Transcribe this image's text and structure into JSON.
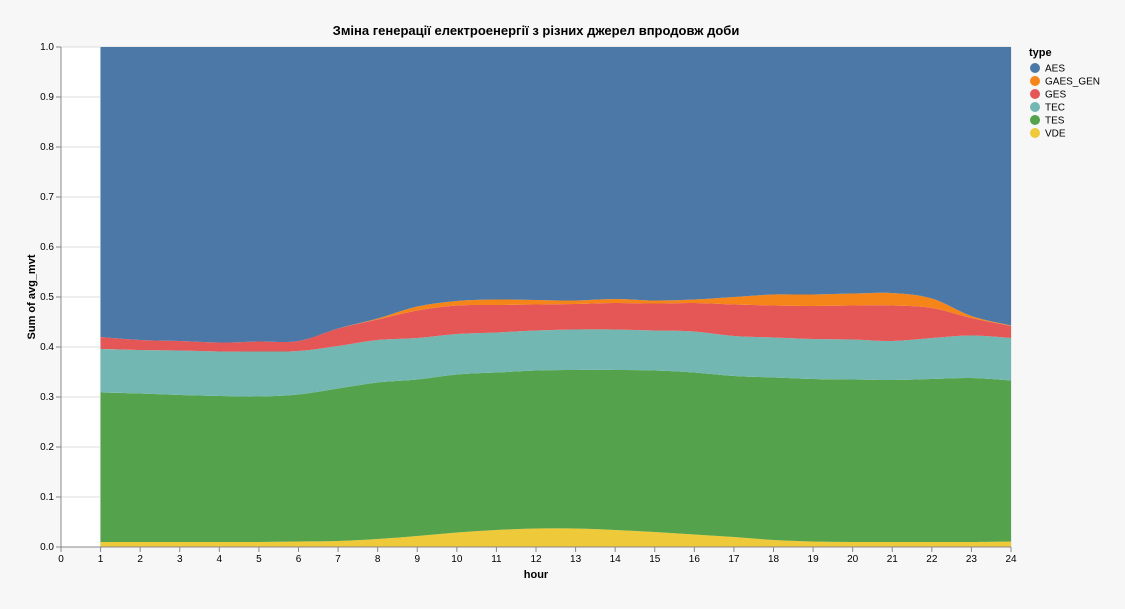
{
  "chart_data": {
    "type": "area",
    "stacked": "normalize",
    "title": "Зміна генерації електроенергії з різних джерел впродовж доби",
    "xlabel": "hour",
    "ylabel": "Sum of avg_mvt",
    "xlim": [
      0,
      24
    ],
    "ylim": [
      0,
      1
    ],
    "x_ticks": [
      "0",
      "1",
      "2",
      "3",
      "4",
      "5",
      "6",
      "7",
      "8",
      "9",
      "10",
      "11",
      "12",
      "13",
      "14",
      "15",
      "16",
      "17",
      "18",
      "19",
      "20",
      "21",
      "22",
      "23",
      "24"
    ],
    "y_ticks": [
      "0.0",
      "0.1",
      "0.2",
      "0.3",
      "0.4",
      "0.5",
      "0.6",
      "0.7",
      "0.8",
      "0.9",
      "1.0"
    ],
    "grid": true,
    "legend": {
      "title": "type",
      "placement": "right"
    },
    "x": [
      1,
      2,
      3,
      4,
      5,
      6,
      7,
      8,
      9,
      10,
      11,
      12,
      13,
      14,
      15,
      16,
      17,
      18,
      19,
      20,
      21,
      22,
      23,
      24
    ],
    "series": [
      {
        "name": "VDE",
        "color": "#eeca3b",
        "values": [
          0.01,
          0.01,
          0.01,
          0.01,
          0.01,
          0.011,
          0.012,
          0.016,
          0.022,
          0.029,
          0.034,
          0.037,
          0.037,
          0.034,
          0.03,
          0.025,
          0.02,
          0.014,
          0.011,
          0.01,
          0.01,
          0.01,
          0.01,
          0.011
        ]
      },
      {
        "name": "TES",
        "color": "#54a24b",
        "values": [
          0.299,
          0.297,
          0.294,
          0.292,
          0.291,
          0.294,
          0.305,
          0.313,
          0.313,
          0.316,
          0.315,
          0.316,
          0.317,
          0.32,
          0.323,
          0.324,
          0.322,
          0.325,
          0.325,
          0.325,
          0.324,
          0.326,
          0.328,
          0.322
        ]
      },
      {
        "name": "TEC",
        "color": "#72b7b2",
        "values": [
          0.087,
          0.087,
          0.089,
          0.089,
          0.09,
          0.087,
          0.085,
          0.085,
          0.083,
          0.081,
          0.08,
          0.08,
          0.081,
          0.081,
          0.08,
          0.082,
          0.08,
          0.08,
          0.08,
          0.08,
          0.078,
          0.082,
          0.085,
          0.085
        ]
      },
      {
        "name": "GES",
        "color": "#e45756",
        "values": [
          0.024,
          0.02,
          0.019,
          0.018,
          0.02,
          0.02,
          0.035,
          0.041,
          0.055,
          0.057,
          0.055,
          0.052,
          0.051,
          0.053,
          0.054,
          0.057,
          0.063,
          0.064,
          0.066,
          0.068,
          0.071,
          0.06,
          0.035,
          0.024
        ]
      },
      {
        "name": "GAES_GEN",
        "color": "#f58518",
        "values": [
          0.0,
          0.0,
          0.0,
          0.0,
          0.0,
          0.0,
          0.0,
          0.002,
          0.008,
          0.009,
          0.011,
          0.009,
          0.007,
          0.008,
          0.006,
          0.007,
          0.015,
          0.022,
          0.023,
          0.024,
          0.025,
          0.019,
          0.004,
          0.001
        ]
      },
      {
        "name": "AES",
        "color": "#4c78a8",
        "values": [
          0.58,
          0.586,
          0.588,
          0.591,
          0.589,
          0.588,
          0.563,
          0.543,
          0.519,
          0.508,
          0.505,
          0.506,
          0.507,
          0.504,
          0.507,
          0.505,
          0.5,
          0.495,
          0.495,
          0.493,
          0.492,
          0.503,
          0.538,
          0.557
        ]
      }
    ]
  }
}
